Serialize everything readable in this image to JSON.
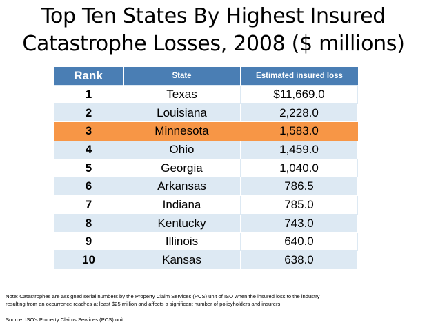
{
  "title": {
    "line1": "Top Ten States By Highest Insured",
    "line2": "Catastrophe Losses, 2008 ($ millions)"
  },
  "table": {
    "headers": [
      "Rank",
      "State",
      "Estimated insured loss"
    ],
    "highlight_color": "#f79646",
    "header_color": "#4a7eb4",
    "stripe_color": "#dde9f3",
    "rows": [
      {
        "rank": "1",
        "state": "Texas",
        "loss": "$11,669.0"
      },
      {
        "rank": "2",
        "state": "Louisiana",
        "loss": "2,228.0"
      },
      {
        "rank": "3",
        "state": "Minnesota",
        "loss": "1,583.0",
        "highlight": true
      },
      {
        "rank": "4",
        "state": "Ohio",
        "loss": "1,459.0"
      },
      {
        "rank": "5",
        "state": "Georgia",
        "loss": "1,040.0"
      },
      {
        "rank": "6",
        "state": "Arkansas",
        "loss": "786.5"
      },
      {
        "rank": "7",
        "state": "Indiana",
        "loss": "785.0"
      },
      {
        "rank": "8",
        "state": "Kentucky",
        "loss": "743.0"
      },
      {
        "rank": "9",
        "state": "Illinois",
        "loss": "640.0"
      },
      {
        "rank": "10",
        "state": "Kansas",
        "loss": "638.0"
      }
    ]
  },
  "footnotes": {
    "note_line1": "Note: Catastrophes are assigned serial numbers by the Property Claim Services (PCS) unit of ISO when the insured loss to the industry",
    "note_line2": "resulting from an occurrence reaches at least $25 million and affects a significant number of policyholders and insurers.",
    "source": "Source: ISO’s Property Claims Services (PCS) unit."
  }
}
